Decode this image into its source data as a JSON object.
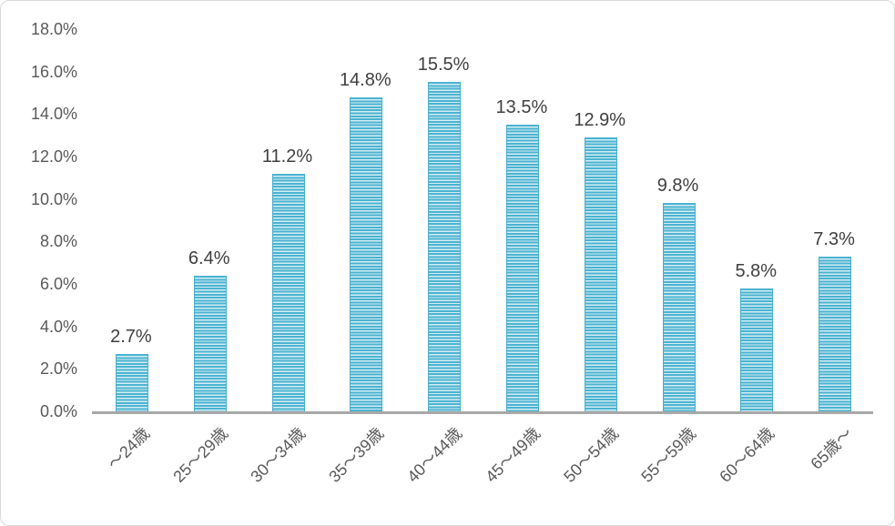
{
  "chart_data": {
    "type": "bar",
    "title": "",
    "xlabel": "",
    "ylabel": "",
    "categories": [
      "～24歳",
      "25～29歳",
      "30～34歳",
      "35～39歳",
      "40～44歳",
      "45～49歳",
      "50～54歳",
      "55～59歳",
      "60～64歳",
      "65歳～"
    ],
    "values": [
      2.7,
      6.4,
      11.2,
      14.8,
      15.5,
      13.5,
      12.9,
      9.8,
      5.8,
      7.3
    ],
    "data_labels": [
      "2.7%",
      "6.4%",
      "11.2%",
      "14.8%",
      "15.5%",
      "13.5%",
      "12.9%",
      "9.8%",
      "5.8%",
      "7.3%"
    ],
    "y_axis": {
      "min": 0,
      "max": 18,
      "step": 2,
      "tick_labels": [
        "0.0%",
        "2.0%",
        "4.0%",
        "6.0%",
        "8.0%",
        "10.0%",
        "12.0%",
        "14.0%",
        "16.0%",
        "18.0%"
      ]
    },
    "grid": false,
    "legend": false,
    "bar_fill_pattern": "horizontal-stripes",
    "colors": {
      "bar_stripe_dark": "#4ab3d1",
      "bar_stripe_light": "#d5edf4",
      "bar_edge": "#45aecb",
      "axis_line": "#a8a8a8",
      "data_label_text": "#3f3f3f",
      "tick_text": "#595959",
      "frame_border": "#d9d9d9",
      "background": "#ffffff"
    }
  }
}
